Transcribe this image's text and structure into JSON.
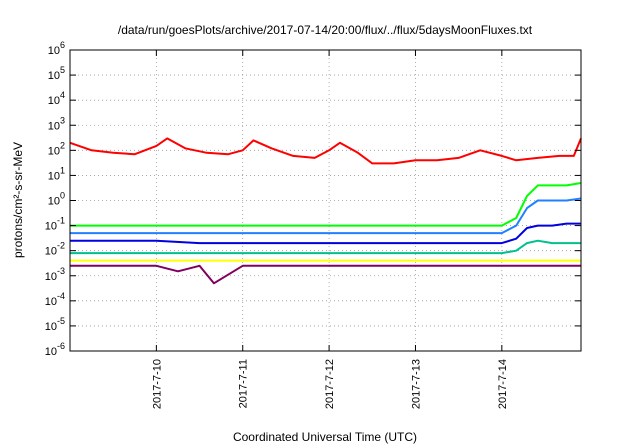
{
  "chart_data": {
    "type": "line",
    "title": "/data/run/goesPlots/archive/2017-07-14/20:00/flux/../flux/5daysMoonFluxes.txt",
    "xlabel": "Coordinated Universal Time (UTC)",
    "ylabel": "protons/cm²-s-sr-MeV",
    "y_scale": "log",
    "ylim": [
      1e-06,
      1000000.0
    ],
    "y_ticks": [
      {
        "value": 1e-06,
        "mantissa": "10",
        "exp": "-6"
      },
      {
        "value": 1e-05,
        "mantissa": "10",
        "exp": "-5"
      },
      {
        "value": 0.0001,
        "mantissa": "10",
        "exp": "-4"
      },
      {
        "value": 0.001,
        "mantissa": "10",
        "exp": "-3"
      },
      {
        "value": 0.01,
        "mantissa": "10",
        "exp": "-2"
      },
      {
        "value": 0.1,
        "mantissa": "10",
        "exp": "-1"
      },
      {
        "value": 1,
        "mantissa": "10",
        "exp": "0"
      },
      {
        "value": 10,
        "mantissa": "10",
        "exp": "1"
      },
      {
        "value": 100,
        "mantissa": "10",
        "exp": "2"
      },
      {
        "value": 1000,
        "mantissa": "10",
        "exp": "3"
      },
      {
        "value": 10000,
        "mantissa": "10",
        "exp": "4"
      },
      {
        "value": 100000,
        "mantissa": "10",
        "exp": "5"
      },
      {
        "value": 1000000,
        "mantissa": "10",
        "exp": "6"
      }
    ],
    "xlim": [
      "2017-07-09 00:00",
      "2017-07-14 22:00"
    ],
    "x_ticks": [
      {
        "date": "2017-07-10 00:00",
        "label": "2017-7-10"
      },
      {
        "date": "2017-07-11 00:00",
        "label": "2017-7-11"
      },
      {
        "date": "2017-07-12 00:00",
        "label": "2017-7-12"
      },
      {
        "date": "2017-07-13 00:00",
        "label": "2017-7-13"
      },
      {
        "date": "2017-07-14 00:00",
        "label": "2017-7-14"
      }
    ],
    "grid": true,
    "series": [
      {
        "color": "#ff0000",
        "x": [
          "2017-07-09 00:00",
          "2017-07-09 06:00",
          "2017-07-09 12:00",
          "2017-07-09 18:00",
          "2017-07-10 00:00",
          "2017-07-10 03:00",
          "2017-07-10 08:00",
          "2017-07-10 14:00",
          "2017-07-10 20:00",
          "2017-07-11 00:00",
          "2017-07-11 03:00",
          "2017-07-11 08:00",
          "2017-07-11 14:00",
          "2017-07-11 20:00",
          "2017-07-12 00:00",
          "2017-07-12 03:00",
          "2017-07-12 08:00",
          "2017-07-12 12:00",
          "2017-07-12 18:00",
          "2017-07-13 00:00",
          "2017-07-13 06:00",
          "2017-07-13 12:00",
          "2017-07-13 18:00",
          "2017-07-14 00:00",
          "2017-07-14 04:00",
          "2017-07-14 10:00",
          "2017-07-14 16:00",
          "2017-07-14 20:00",
          "2017-07-14 22:00"
        ],
        "y": [
          200,
          100,
          80,
          70,
          150,
          300,
          120,
          80,
          70,
          100,
          250,
          120,
          60,
          50,
          100,
          200,
          80,
          30,
          30,
          40,
          40,
          50,
          100,
          60,
          40,
          50,
          60,
          60,
          300
        ]
      },
      {
        "color": "#00ff00",
        "x": [
          "2017-07-09 00:00",
          "2017-07-09 12:00",
          "2017-07-10 00:00",
          "2017-07-10 12:00",
          "2017-07-11 00:00",
          "2017-07-11 12:00",
          "2017-07-12 00:00",
          "2017-07-12 12:00",
          "2017-07-13 00:00",
          "2017-07-13 12:00",
          "2017-07-14 00:00",
          "2017-07-14 04:00",
          "2017-07-14 07:00",
          "2017-07-14 10:00",
          "2017-07-14 14:00",
          "2017-07-14 18:00",
          "2017-07-14 22:00"
        ],
        "y": [
          0.1,
          0.1,
          0.1,
          0.1,
          0.1,
          0.1,
          0.1,
          0.1,
          0.1,
          0.1,
          0.1,
          0.2,
          1.5,
          4,
          4,
          4,
          5
        ]
      },
      {
        "color": "#2080ff",
        "x": [
          "2017-07-09 00:00",
          "2017-07-09 12:00",
          "2017-07-10 00:00",
          "2017-07-10 12:00",
          "2017-07-11 00:00",
          "2017-07-11 12:00",
          "2017-07-12 00:00",
          "2017-07-12 12:00",
          "2017-07-13 00:00",
          "2017-07-13 12:00",
          "2017-07-14 00:00",
          "2017-07-14 04:00",
          "2017-07-14 07:00",
          "2017-07-14 10:00",
          "2017-07-14 14:00",
          "2017-07-14 18:00",
          "2017-07-14 22:00"
        ],
        "y": [
          0.05,
          0.05,
          0.05,
          0.05,
          0.05,
          0.05,
          0.05,
          0.05,
          0.05,
          0.05,
          0.05,
          0.1,
          0.5,
          1,
          1,
          1,
          1.2
        ]
      },
      {
        "color": "#0000e0",
        "x": [
          "2017-07-09 00:00",
          "2017-07-09 12:00",
          "2017-07-10 00:00",
          "2017-07-10 12:00",
          "2017-07-11 00:00",
          "2017-07-11 12:00",
          "2017-07-12 00:00",
          "2017-07-12 12:00",
          "2017-07-13 00:00",
          "2017-07-13 12:00",
          "2017-07-14 00:00",
          "2017-07-14 04:00",
          "2017-07-14 07:00",
          "2017-07-14 10:00",
          "2017-07-14 14:00",
          "2017-07-14 18:00",
          "2017-07-14 22:00"
        ],
        "y": [
          0.025,
          0.025,
          0.025,
          0.02,
          0.02,
          0.02,
          0.02,
          0.02,
          0.02,
          0.02,
          0.02,
          0.03,
          0.08,
          0.1,
          0.1,
          0.12,
          0.12
        ]
      },
      {
        "color": "#00c090",
        "x": [
          "2017-07-09 00:00",
          "2017-07-09 12:00",
          "2017-07-10 00:00",
          "2017-07-10 12:00",
          "2017-07-11 00:00",
          "2017-07-11 12:00",
          "2017-07-12 00:00",
          "2017-07-12 12:00",
          "2017-07-13 00:00",
          "2017-07-13 12:00",
          "2017-07-14 00:00",
          "2017-07-14 04:00",
          "2017-07-14 07:00",
          "2017-07-14 10:00",
          "2017-07-14 14:00",
          "2017-07-14 18:00",
          "2017-07-14 22:00"
        ],
        "y": [
          0.008,
          0.008,
          0.008,
          0.008,
          0.008,
          0.008,
          0.008,
          0.008,
          0.008,
          0.008,
          0.008,
          0.01,
          0.02,
          0.025,
          0.02,
          0.02,
          0.02
        ]
      },
      {
        "color": "#ffff00",
        "x": [
          "2017-07-09 00:00",
          "2017-07-10 00:00",
          "2017-07-11 00:00",
          "2017-07-12 00:00",
          "2017-07-13 00:00",
          "2017-07-14 00:00",
          "2017-07-14 22:00"
        ],
        "y": [
          0.004,
          0.004,
          0.004,
          0.004,
          0.004,
          0.004,
          0.004
        ]
      },
      {
        "color": "#800060",
        "x": [
          "2017-07-09 00:00",
          "2017-07-09 12:00",
          "2017-07-10 00:00",
          "2017-07-10 06:00",
          "2017-07-10 12:00",
          "2017-07-10 16:00",
          "2017-07-11 00:00",
          "2017-07-11 12:00",
          "2017-07-12 00:00",
          "2017-07-12 12:00",
          "2017-07-13 00:00",
          "2017-07-13 12:00",
          "2017-07-14 00:00",
          "2017-07-14 12:00",
          "2017-07-14 22:00"
        ],
        "y": [
          0.0025,
          0.0025,
          0.0025,
          0.0015,
          0.0025,
          0.0005,
          0.0025,
          0.0025,
          0.0025,
          0.0025,
          0.0025,
          0.0025,
          0.0025,
          0.0025,
          0.0025
        ]
      }
    ]
  }
}
